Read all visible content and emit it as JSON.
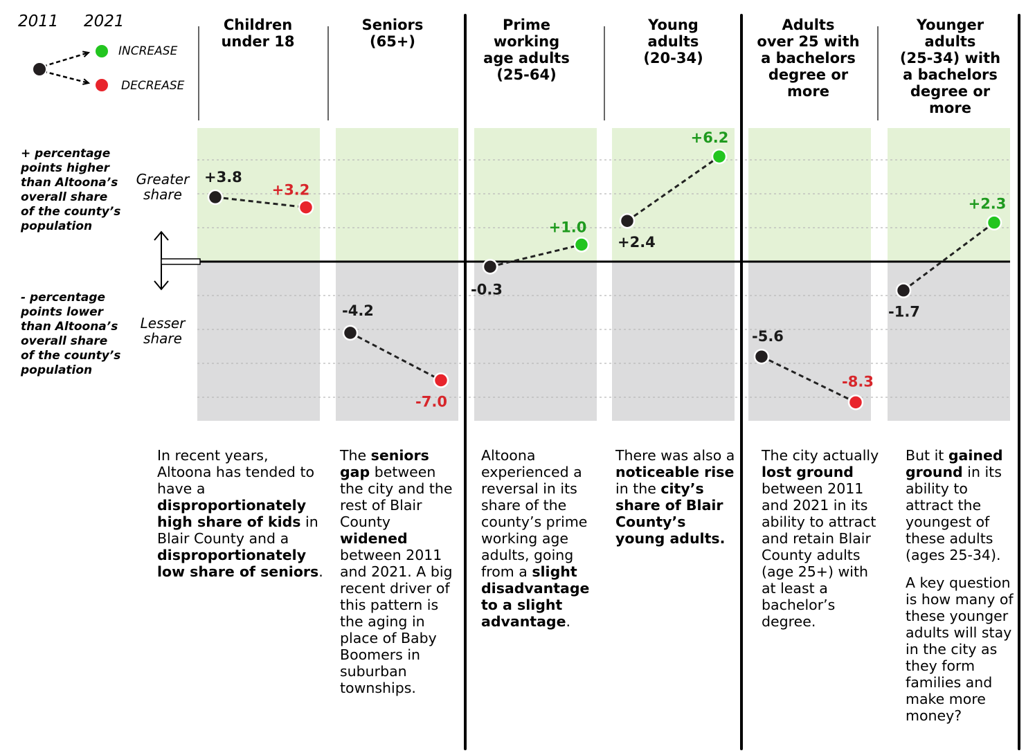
{
  "legend": {
    "year_start": "2011",
    "year_end": "2021",
    "increase_label": "INCREASE",
    "decrease_label": "DECREASE"
  },
  "side_labels": {
    "upper_note": "+ percentage\npoints higher\nthan Altoona’s\noverall share\nof the county’s\npopulation",
    "lower_note": "- percentage\npoints lower\nthan Altoona’s\noverall share\nof the county’s\npopulation",
    "greater_share": "Greater\nshare",
    "lesser_share": "Lesser\nshare"
  },
  "colors": {
    "start_dot": "#231f20",
    "increase": "#22c51f",
    "decrease": "#e8242c",
    "increase_text": "#1f9a1f",
    "decrease_text": "#d7262b",
    "positive_band": "#e4f2d6",
    "negative_band": "#dcdcdd"
  },
  "chart_data": {
    "type": "slope",
    "x": [
      "2011",
      "2021"
    ],
    "ylim": [
      -10,
      8
    ],
    "series": [
      {
        "name": "Children under 18",
        "values": [
          3.8,
          3.2
        ],
        "labels": [
          "+3.8",
          "+3.2"
        ],
        "change": "decrease"
      },
      {
        "name": "Seniors (65+)",
        "values": [
          -4.2,
          -7.0
        ],
        "labels": [
          "-4.2",
          "-7.0"
        ],
        "change": "decrease"
      },
      {
        "name": "Prime working age adults (25-64)",
        "values": [
          -0.3,
          1.0
        ],
        "labels": [
          "-0.3",
          "+1.0"
        ],
        "change": "increase"
      },
      {
        "name": "Young adults (20-34)",
        "values": [
          2.4,
          6.2
        ],
        "labels": [
          "+2.4",
          "+6.2"
        ],
        "change": "increase"
      },
      {
        "name": "Adults over 25 with a bachelors degree or more",
        "values": [
          -5.6,
          -8.3
        ],
        "labels": [
          "-5.6",
          "-8.3"
        ],
        "change": "decrease"
      },
      {
        "name": "Younger adults (25-34) with a bachelors degree or more",
        "values": [
          -1.7,
          2.3
        ],
        "labels": [
          "-1.7",
          "+2.3"
        ],
        "change": "increase"
      }
    ]
  },
  "headers": [
    "Children\nunder 18",
    "Seniors\n(65+)",
    "Prime\nworking\nage adults\n(25-64)",
    "Young\nadults\n(20-34)",
    "Adults\nover 25 with\na bachelors\ndegree or\nmore",
    "Younger\nadults\n(25-34) with\na bachelors\ndegree or\nmore"
  ],
  "notes": [
    [
      {
        "t": "In recent years, Altoona has tended to have a "
      },
      {
        "t": "disproportionately high share of kids",
        "b": true
      },
      {
        "t": " in Blair County and a "
      },
      {
        "t": "disproportionately low share of seniors",
        "b": true
      },
      {
        "t": "."
      }
    ],
    [
      {
        "t": "The "
      },
      {
        "t": "seniors gap",
        "b": true
      },
      {
        "t": " between the city and the rest of Blair County "
      },
      {
        "t": "widened",
        "b": true
      },
      {
        "t": " between 2011 and 2021. A big recent driver of this pattern is the aging in place of Baby Boomers in suburban townships."
      }
    ],
    [
      {
        "t": "Altoona experienced a reversal in its share of the county’s prime working age adults, going from a "
      },
      {
        "t": "slight disadvantage to a slight advantage",
        "b": true
      },
      {
        "t": "."
      }
    ],
    [
      {
        "t": "There was also a "
      },
      {
        "t": "noticeable rise",
        "b": true
      },
      {
        "t": " in the "
      },
      {
        "t": "city’s share of Blair County’s young adults.",
        "b": true
      }
    ],
    [
      {
        "t": "The city actually "
      },
      {
        "t": "lost ground",
        "b": true
      },
      {
        "t": " between 2011 and 2021 in its ability to attract and retain Blair County adults (age 25+) with at least a bachelor’s degree."
      }
    ],
    [
      {
        "t": "But it "
      },
      {
        "t": "gained ground",
        "b": true
      },
      {
        "t": " in its ability to attract the youngest of these adults (ages 25-34)."
      },
      {
        "br": true
      },
      {
        "t": "A key question is how many of these younger adults will stay in the city as they form families and make more money?"
      }
    ]
  ]
}
